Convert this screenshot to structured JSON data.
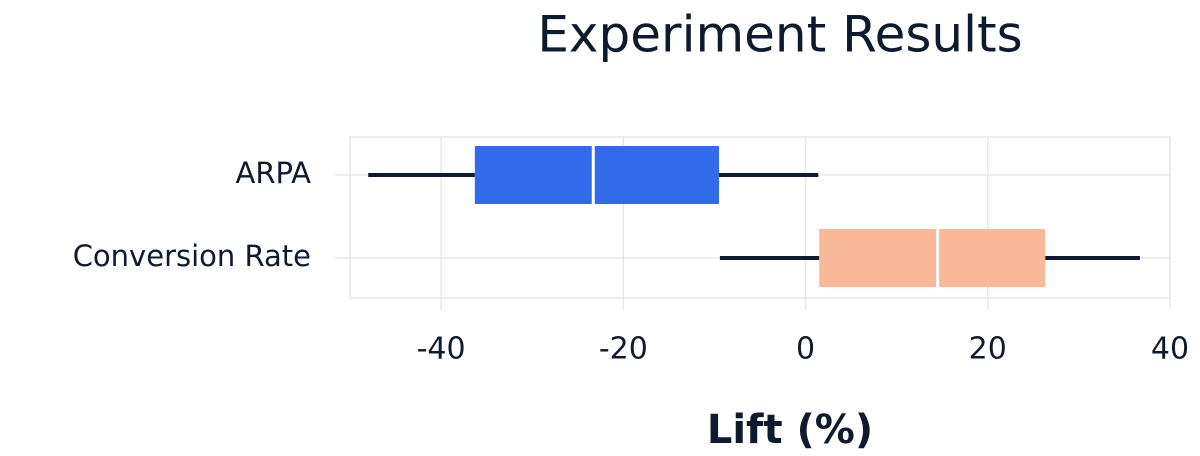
{
  "chart_data": {
    "type": "box",
    "title": "Experiment Results",
    "x_label": "Lift (%)",
    "orientation": "horizontal",
    "grid": true,
    "boxes": [
      {
        "label": "ARPA",
        "color": "#316bea",
        "low": -48,
        "q1": -36.3,
        "median": -23.3,
        "q3": -9.5,
        "high": 1.4
      },
      {
        "label": "Conversion Rate",
        "color": "#f9b898",
        "low": -9.4,
        "q1": 1.5,
        "median": 14.5,
        "q3": 26.3,
        "high": 36.7
      }
    ],
    "xlim": [
      -50,
      40
    ],
    "xticks": [
      -40,
      -20,
      0,
      20,
      40
    ]
  }
}
